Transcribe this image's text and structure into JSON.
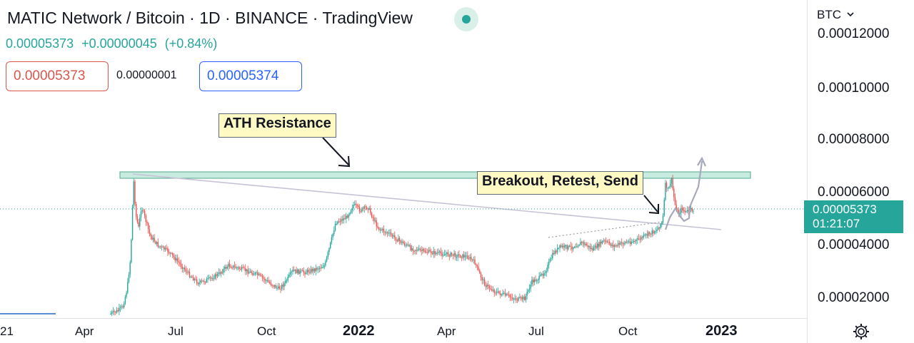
{
  "header": {
    "title": "MATIC Network / Bitcoin · 1D · BINANCE · TradingView",
    "last": "0.00005373",
    "change": "+0.00000045",
    "change_pct": "(+0.84%)"
  },
  "order_panel": {
    "sell_price": "0.00005373",
    "spread": "0.00000001",
    "buy_price": "0.00005374"
  },
  "price_axis": {
    "currency": "BTC",
    "labels": [
      "0.00012000",
      "0.00010000",
      "0.00008000",
      "0.00006000",
      "0.00004000",
      "0.00002000"
    ]
  },
  "time_axis": {
    "labels": [
      "21",
      "Apr",
      "Jul",
      "Oct",
      "2022",
      "Apr",
      "Jul",
      "Oct",
      "2023"
    ]
  },
  "last_price_tag": {
    "price": "0.00005373",
    "countdown": "01:21:07"
  },
  "annotations": {
    "ath": "ATH Resistance",
    "breakout": "Breakout, Retest, Send"
  },
  "colors": {
    "up": "#26a69a",
    "down": "#ef5350",
    "zone": "#c8ebe0",
    "accent": "#2962ff"
  },
  "icons": {
    "settings": "gear-icon",
    "currency_menu": "chevron-down-icon"
  }
}
